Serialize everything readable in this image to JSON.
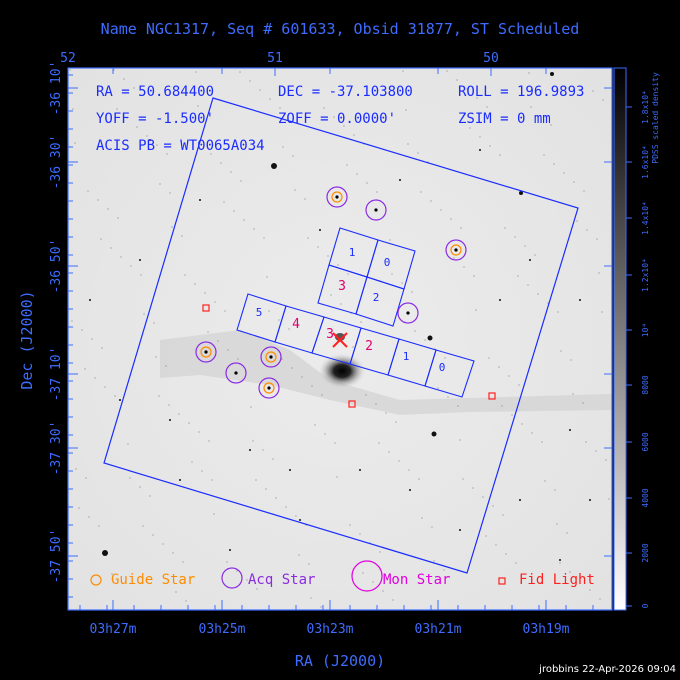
{
  "title": "Name NGC1317, Seq # 601633, Obsid 31877, ST Scheduled",
  "top_axis": {
    "ticks": [
      "52",
      "51",
      "50"
    ]
  },
  "x_axis": {
    "label": "RA (J2000)",
    "ticks": [
      "03h27m",
      "03h25m",
      "03h23m",
      "03h21m",
      "03h19m"
    ]
  },
  "y_axis": {
    "label": "Dec (J2000)",
    "ticks": [
      "-36 10'",
      "-36 30'",
      "-36 50'",
      "-37 10'",
      "-37 30'",
      "-37 50'"
    ]
  },
  "info": {
    "ra": "RA = 50.684400",
    "dec": "DEC = -37.103800",
    "roll": "ROLL = 196.9893",
    "yoff": "YOFF = -1.500'",
    "zoff": "ZOFF = 0.0000'",
    "zsim": "ZSIM = 0 mm",
    "acis": "ACIS PB = WT0065A034"
  },
  "colorbar": {
    "label": "PDSS scaled density",
    "ticks": [
      "0",
      "2000",
      "4000",
      "6000",
      "8000",
      "10⁴",
      "1.2x10⁴",
      "1.4x10⁴",
      "1.6x10⁴",
      "1.8x10⁴"
    ]
  },
  "chips": {
    "upper": [
      {
        "label": "1"
      },
      {
        "label": "0"
      },
      {
        "label": "3"
      },
      {
        "label": "2"
      }
    ],
    "lower": [
      {
        "label": "5"
      },
      {
        "label": "4"
      },
      {
        "label": "3"
      },
      {
        "label": "2"
      },
      {
        "label": "1"
      },
      {
        "label": "0"
      }
    ]
  },
  "legend": {
    "guide": "Guide Star",
    "acq": "Acq Star",
    "mon": "Mon Star",
    "fid": "Fid Light"
  },
  "footer": "jrobbins 22-Apr-2026 09:04",
  "colors": {
    "frame": "#3d6cff",
    "guide": "#ff8c00",
    "acq": "#8a2be2",
    "mon": "#e000e0",
    "fid": "#ff2020",
    "pointer": "#ff2020"
  }
}
